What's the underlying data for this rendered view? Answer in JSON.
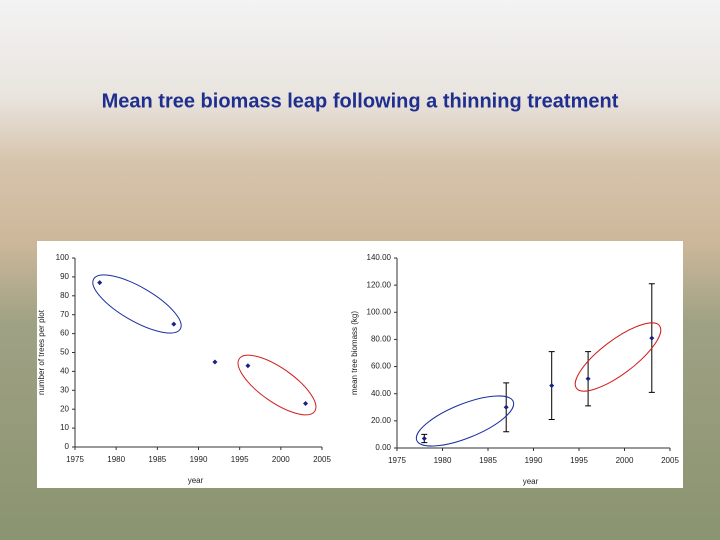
{
  "slide": {
    "title": "Mean tree biomass leap following a thinning treatment"
  },
  "chart_data": [
    {
      "type": "scatter",
      "x_label": "year",
      "y_label": "number of trees per plot",
      "x": [
        1978,
        1987,
        1992,
        1996,
        2003
      ],
      "values": [
        87,
        65,
        45,
        43,
        23
      ],
      "color": "#1a237e",
      "xlim": [
        1975,
        2005
      ],
      "xticks": [
        1975,
        1980,
        1985,
        1990,
        1995,
        2000,
        2005
      ],
      "ylim": [
        0,
        100
      ],
      "yticks": [
        0,
        10,
        20,
        30,
        40,
        50,
        60,
        70,
        80,
        90,
        100
      ]
    },
    {
      "type": "scatter",
      "x_label": "year",
      "y_label": "mean tree biomass (kg)",
      "x": [
        1978,
        1987,
        1992,
        1996,
        2003
      ],
      "values": [
        7,
        30,
        46,
        51,
        81
      ],
      "errors": [
        3,
        18,
        25,
        20,
        40
      ],
      "color": "#1a237e",
      "xlim": [
        1975,
        2005
      ],
      "xticks": [
        1975,
        1980,
        1985,
        1990,
        1995,
        2000,
        2005
      ],
      "ylim": [
        0,
        140
      ],
      "yticks": [
        {
          "value": 0,
          "label": "0.00"
        },
        {
          "value": 20,
          "label": "20.00"
        },
        {
          "value": 40,
          "label": "40.00"
        },
        {
          "value": 60,
          "label": "60.00"
        },
        {
          "value": 80,
          "label": "80.00"
        },
        {
          "value": 100,
          "label": "100.00"
        },
        {
          "value": 120,
          "label": "120.00"
        },
        {
          "value": 140,
          "label": "140.00"
        }
      ]
    }
  ]
}
